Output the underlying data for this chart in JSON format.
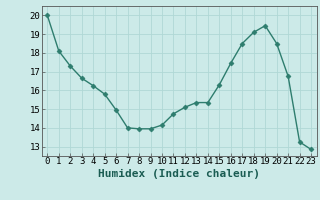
{
  "x": [
    0,
    1,
    2,
    3,
    4,
    5,
    6,
    7,
    8,
    9,
    10,
    11,
    12,
    13,
    14,
    15,
    16,
    17,
    18,
    19,
    20,
    21,
    22,
    23
  ],
  "y": [
    20,
    18.1,
    17.3,
    16.65,
    16.25,
    15.8,
    14.95,
    14.0,
    13.95,
    13.95,
    14.15,
    14.75,
    15.1,
    15.35,
    15.35,
    16.3,
    17.45,
    18.5,
    19.1,
    19.45,
    18.5,
    16.75,
    13.25,
    12.85
  ],
  "line_color": "#2e7d6e",
  "marker": "D",
  "marker_size": 2.5,
  "bg_color": "#cceae8",
  "grid_color": "#b0d8d5",
  "xlabel": "Humidex (Indice chaleur)",
  "xlabel_fontsize": 8,
  "ylim": [
    12.5,
    20.5
  ],
  "xlim": [
    -0.5,
    23.5
  ],
  "yticks": [
    13,
    14,
    15,
    16,
    17,
    18,
    19,
    20
  ],
  "xticks": [
    0,
    1,
    2,
    3,
    4,
    5,
    6,
    7,
    8,
    9,
    10,
    11,
    12,
    13,
    14,
    15,
    16,
    17,
    18,
    19,
    20,
    21,
    22,
    23
  ],
  "tick_fontsize": 6.5,
  "line_width": 1.0
}
